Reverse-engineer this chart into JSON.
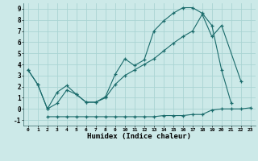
{
  "xlabel": "Humidex (Indice chaleur)",
  "bg_color": "#cce9e8",
  "grid_color": "#aad4d3",
  "line_color": "#1a6b6b",
  "xlim": [
    -0.5,
    23.5
  ],
  "ylim": [
    -1.5,
    9.5
  ],
  "xticks": [
    0,
    1,
    2,
    3,
    4,
    5,
    6,
    7,
    8,
    9,
    10,
    11,
    12,
    13,
    14,
    15,
    16,
    17,
    18,
    19,
    20,
    21,
    22,
    23
  ],
  "yticks": [
    -1,
    0,
    1,
    2,
    3,
    4,
    5,
    6,
    7,
    8,
    9
  ],
  "series1_x": [
    0,
    1,
    2,
    3,
    4,
    5,
    6,
    7,
    8,
    9,
    10,
    11,
    12,
    13,
    14,
    15,
    16,
    17,
    18,
    19,
    20,
    21
  ],
  "series1_y": [
    3.5,
    2.2,
    0.0,
    1.5,
    2.1,
    1.3,
    0.6,
    0.6,
    1.1,
    3.1,
    4.5,
    3.9,
    4.4,
    7.0,
    7.9,
    8.6,
    9.1,
    9.1,
    8.6,
    7.5,
    3.5,
    0.5
  ],
  "series2_x": [
    0,
    1,
    2,
    3,
    4,
    5,
    6,
    7,
    8,
    9,
    10,
    11,
    12,
    13,
    14,
    15,
    16,
    17,
    18,
    19,
    20,
    22
  ],
  "series2_y": [
    3.5,
    2.2,
    0.0,
    0.5,
    1.7,
    1.3,
    0.6,
    0.6,
    1.0,
    2.2,
    3.0,
    3.5,
    4.0,
    4.5,
    5.2,
    5.9,
    6.5,
    7.0,
    8.5,
    6.5,
    7.5,
    2.5
  ],
  "series3_x": [
    2,
    3,
    4,
    5,
    6,
    7,
    8,
    9,
    10,
    11,
    12,
    13,
    14,
    15,
    16,
    17,
    18,
    19,
    20,
    21,
    22,
    23
  ],
  "series3_y": [
    -0.7,
    -0.7,
    -0.7,
    -0.7,
    -0.7,
    -0.7,
    -0.7,
    -0.7,
    -0.7,
    -0.7,
    -0.7,
    -0.7,
    -0.6,
    -0.6,
    -0.6,
    -0.5,
    -0.5,
    -0.1,
    0.0,
    0.0,
    0.0,
    0.1
  ]
}
